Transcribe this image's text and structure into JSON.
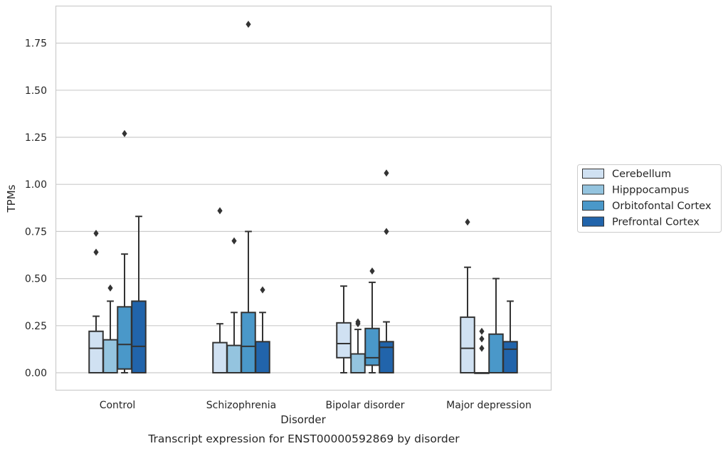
{
  "chart_data": {
    "type": "box",
    "xlabel": "Disorder",
    "ylabel": "TPMs",
    "caption": "Transcript expression for ENST00000592869 by disorder",
    "ylim": [
      -0.09,
      1.94
    ],
    "yticks": [
      "0.00",
      "0.25",
      "0.50",
      "0.75",
      "1.00",
      "1.25",
      "1.50",
      "1.75"
    ],
    "grid": "horizontal",
    "legend_position": "right",
    "categories": [
      "Control",
      "Schizophrenia",
      "Bipolar disorder",
      "Major depression"
    ],
    "series": [
      {
        "name": "Cerebellum",
        "color": "#d0e1f2",
        "boxes": [
          {
            "whislo": 0.0,
            "q1": 0.0,
            "med": 0.13,
            "q3": 0.22,
            "whishi": 0.3,
            "fliers": [
              0.64,
              0.74
            ]
          },
          {
            "whislo": 0.0,
            "q1": 0.0,
            "med": 0.0,
            "q3": 0.16,
            "whishi": 0.26,
            "fliers": [
              0.86
            ]
          },
          {
            "whislo": 0.0,
            "q1": 0.08,
            "med": 0.155,
            "q3": 0.265,
            "whishi": 0.46,
            "fliers": []
          },
          {
            "whislo": 0.0,
            "q1": 0.0,
            "med": 0.13,
            "q3": 0.295,
            "whishi": 0.56,
            "fliers": [
              0.8
            ]
          }
        ]
      },
      {
        "name": "Hipppocampus",
        "color": "#94c4df",
        "boxes": [
          {
            "whislo": 0.0,
            "q1": 0.0,
            "med": 0.0,
            "q3": 0.175,
            "whishi": 0.38,
            "fliers": [
              0.45
            ]
          },
          {
            "whislo": 0.0,
            "q1": 0.0,
            "med": 0.0,
            "q3": 0.145,
            "whishi": 0.32,
            "fliers": [
              0.7
            ]
          },
          {
            "whislo": 0.0,
            "q1": 0.0,
            "med": 0.0,
            "q3": 0.1,
            "whishi": 0.23,
            "fliers": [
              0.26,
              0.27
            ]
          },
          {
            "whislo": 0.0,
            "q1": 0.0,
            "med": 0.0,
            "q3": 0.0,
            "whishi": 0.0,
            "fliers": [
              0.13,
              0.18,
              0.22
            ]
          }
        ]
      },
      {
        "name": "Orbitofontal Cortex",
        "color": "#4a98c9",
        "boxes": [
          {
            "whislo": 0.0,
            "q1": 0.02,
            "med": 0.15,
            "q3": 0.35,
            "whishi": 0.63,
            "fliers": [
              1.27
            ]
          },
          {
            "whislo": 0.0,
            "q1": 0.0,
            "med": 0.14,
            "q3": 0.32,
            "whishi": 0.75,
            "fliers": [
              1.85
            ]
          },
          {
            "whislo": 0.0,
            "q1": 0.04,
            "med": 0.08,
            "q3": 0.235,
            "whishi": 0.48,
            "fliers": [
              0.54
            ]
          },
          {
            "whislo": 0.0,
            "q1": 0.0,
            "med": 0.0,
            "q3": 0.205,
            "whishi": 0.5,
            "fliers": []
          }
        ]
      },
      {
        "name": "Prefrontal Cortex",
        "color": "#2164ab",
        "boxes": [
          {
            "whislo": 0.0,
            "q1": 0.0,
            "med": 0.14,
            "q3": 0.38,
            "whishi": 0.83,
            "fliers": []
          },
          {
            "whislo": 0.0,
            "q1": 0.0,
            "med": 0.0,
            "q3": 0.165,
            "whishi": 0.32,
            "fliers": [
              0.44
            ]
          },
          {
            "whislo": 0.0,
            "q1": 0.0,
            "med": 0.135,
            "q3": 0.165,
            "whishi": 0.27,
            "fliers": [
              0.75,
              1.06
            ]
          },
          {
            "whislo": 0.0,
            "q1": 0.0,
            "med": 0.125,
            "q3": 0.165,
            "whishi": 0.38,
            "fliers": []
          }
        ]
      }
    ]
  }
}
